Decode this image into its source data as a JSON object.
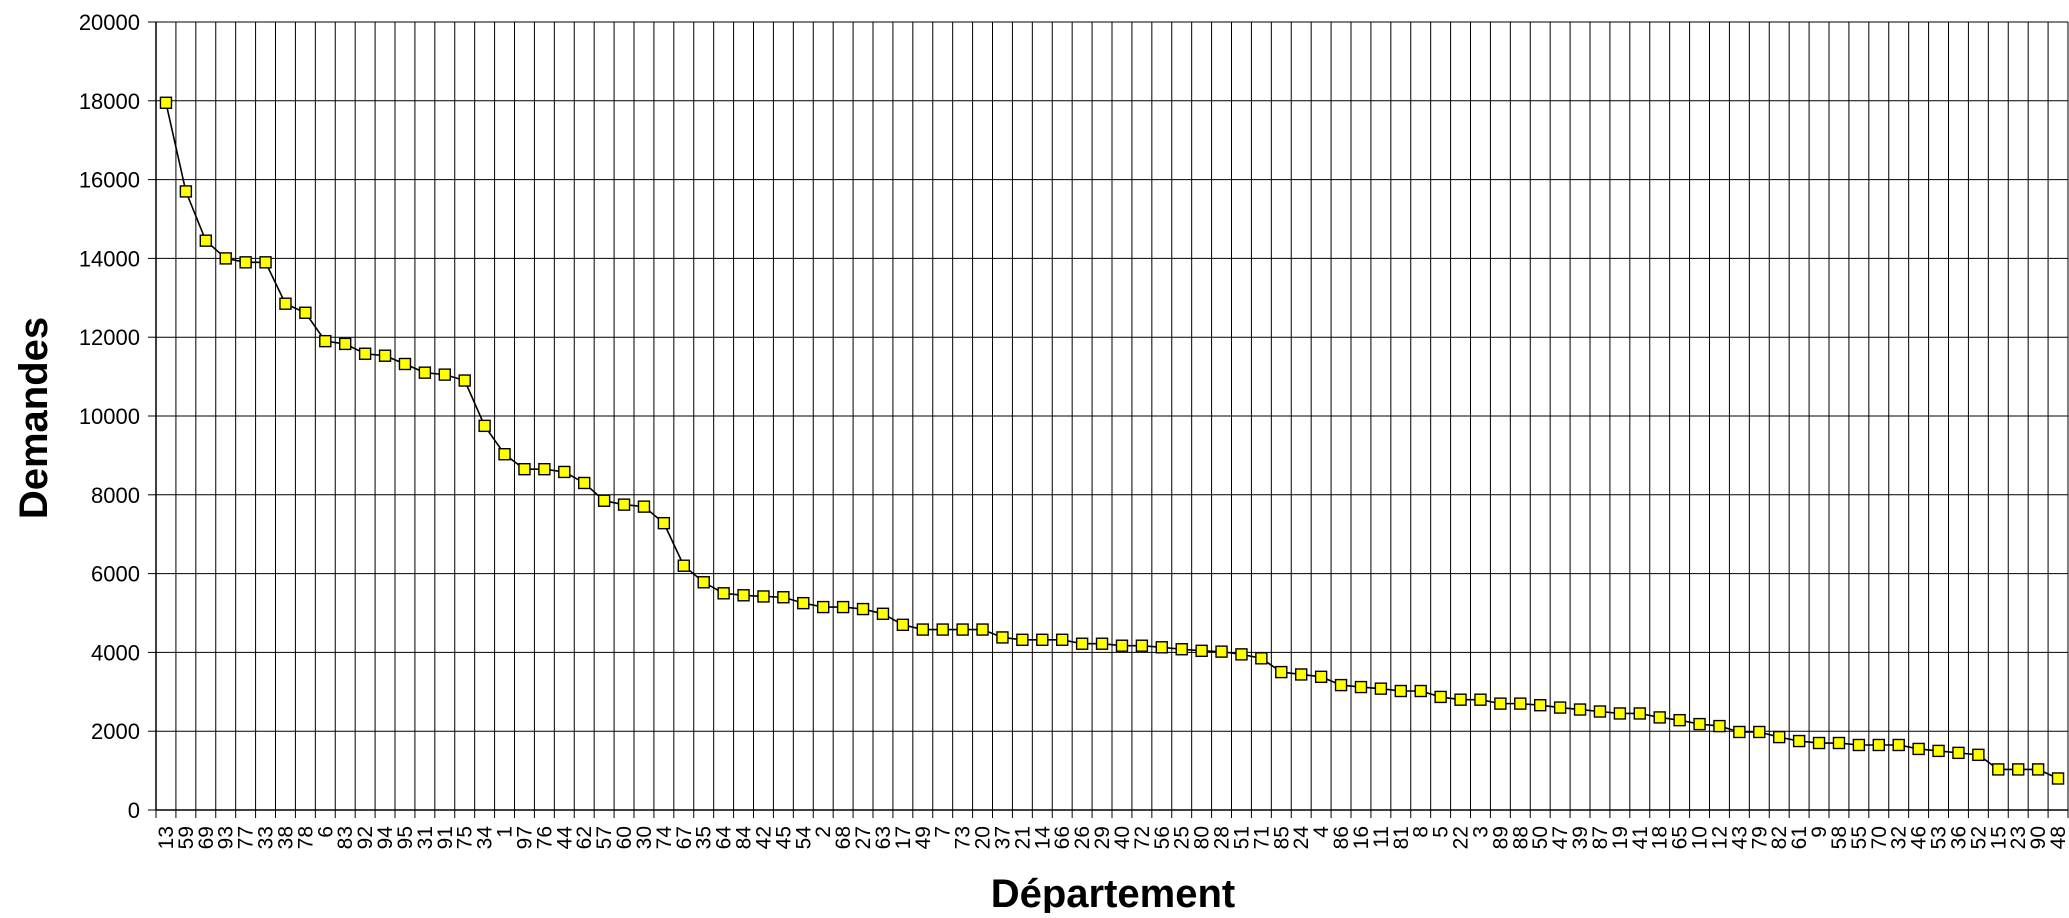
{
  "chart_data": {
    "type": "line",
    "xlabel": "Département",
    "ylabel": "Demandes",
    "ylim": [
      0,
      20000
    ],
    "yticks": [
      0,
      2000,
      4000,
      6000,
      8000,
      10000,
      12000,
      14000,
      16000,
      18000,
      20000
    ],
    "grid": true,
    "marker": "square",
    "marker_color": "#ffff00",
    "line_color": "#000000",
    "categories": [
      "13",
      "59",
      "69",
      "93",
      "77",
      "33",
      "38",
      "78",
      "6",
      "83",
      "92",
      "94",
      "95",
      "31",
      "91",
      "75",
      "34",
      "1",
      "97",
      "76",
      "44",
      "62",
      "57",
      "60",
      "30",
      "74",
      "67",
      "35",
      "64",
      "84",
      "42",
      "45",
      "54",
      "2",
      "68",
      "27",
      "63",
      "17",
      "49",
      "7",
      "73",
      "20",
      "37",
      "21",
      "14",
      "66",
      "26",
      "29",
      "40",
      "72",
      "56",
      "25",
      "80",
      "28",
      "51",
      "71",
      "85",
      "24",
      "4",
      "86",
      "16",
      "11",
      "81",
      "8",
      "5",
      "22",
      "3",
      "89",
      "88",
      "50",
      "47",
      "39",
      "87",
      "19",
      "41",
      "18",
      "65",
      "10",
      "12",
      "43",
      "79",
      "82",
      "61",
      "9",
      "58",
      "55",
      "70",
      "32",
      "46",
      "53",
      "36",
      "52",
      "15",
      "23",
      "90",
      "48"
    ],
    "values": [
      17950,
      15700,
      14450,
      14000,
      13900,
      13900,
      12850,
      12620,
      11900,
      11830,
      11580,
      11530,
      11320,
      11100,
      11050,
      10900,
      9750,
      9030,
      8650,
      8650,
      8580,
      8300,
      7850,
      7750,
      7700,
      7280,
      6200,
      5780,
      5500,
      5450,
      5420,
      5400,
      5250,
      5150,
      5150,
      5100,
      4980,
      4700,
      4580,
      4580,
      4580,
      4580,
      4380,
      4320,
      4320,
      4320,
      4220,
      4220,
      4170,
      4170,
      4130,
      4080,
      4040,
      4020,
      3950,
      3850,
      3500,
      3440,
      3380,
      3170,
      3120,
      3080,
      3020,
      3020,
      2870,
      2800,
      2800,
      2700,
      2700,
      2660,
      2600,
      2550,
      2500,
      2450,
      2450,
      2350,
      2280,
      2180,
      2130,
      1980,
      1980,
      1850,
      1750,
      1700,
      1700,
      1650,
      1650,
      1650,
      1550,
      1500,
      1450,
      1400,
      1030,
      1030,
      1030,
      800
    ]
  }
}
